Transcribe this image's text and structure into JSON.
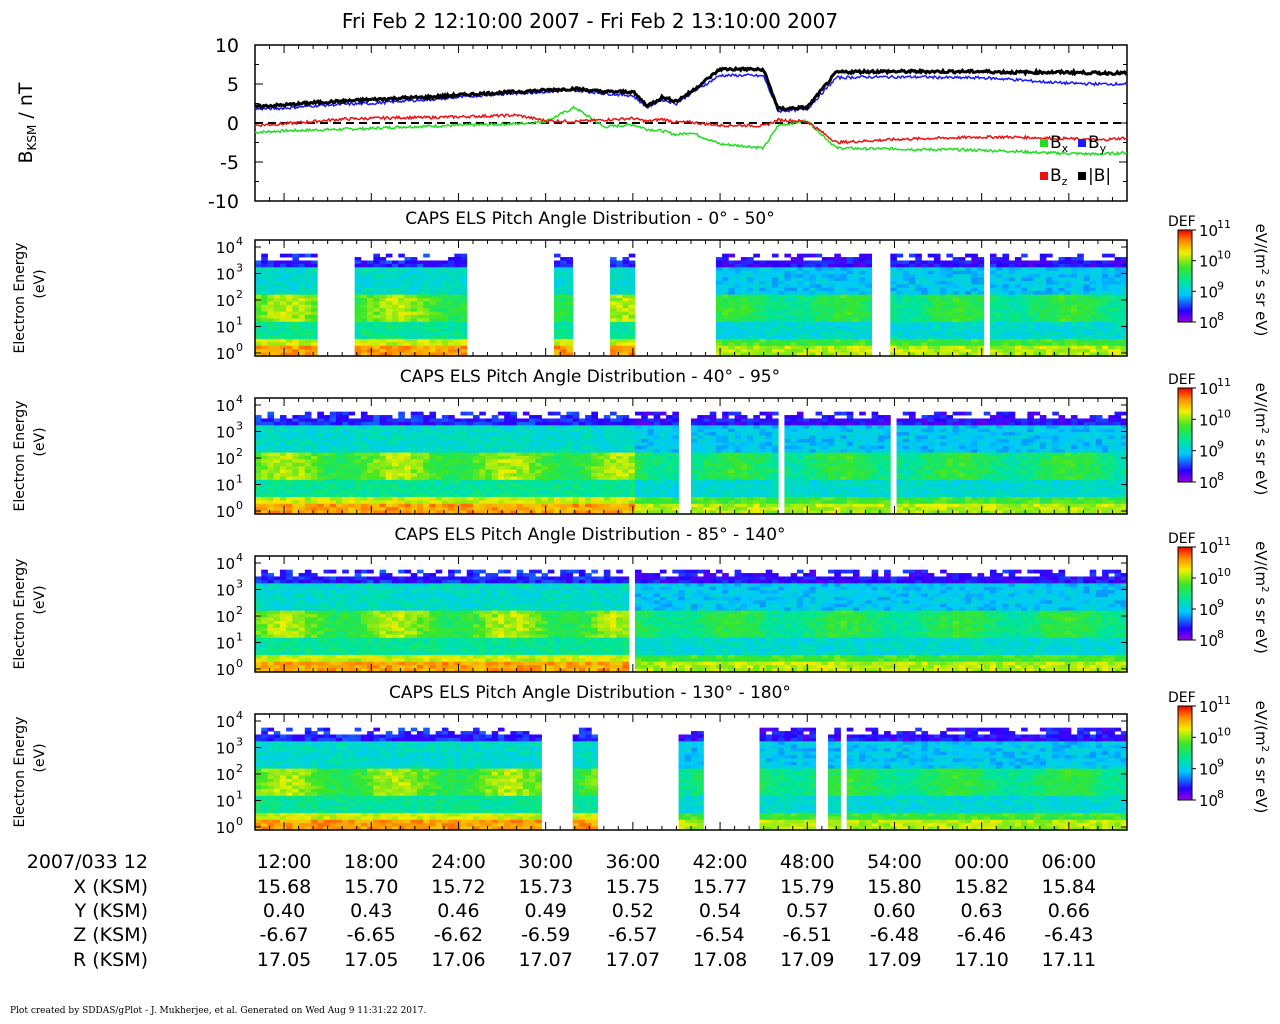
{
  "title": "Fri Feb 2 12:10:00 2007 - Fri Feb 2 13:10:00 2007",
  "mag_panel": {
    "ylabel_main": "B",
    "ylabel_sub": "KSM",
    "ylabel_unit": " / nT",
    "yticks": [
      "10",
      "5",
      "0",
      "-5",
      "-10"
    ],
    "legend": [
      {
        "label": "B",
        "sub": "x",
        "color": "#22dd22"
      },
      {
        "label": "B",
        "sub": "y",
        "color": "#1a1aff"
      },
      {
        "label": "B",
        "sub": "z",
        "color": "#ee1111"
      },
      {
        "label": "|B|",
        "sub": "",
        "color": "#000000"
      }
    ]
  },
  "spectro_panels": [
    {
      "title": "CAPS ELS Pitch Angle Distribution - 0° - 50°"
    },
    {
      "title": "CAPS ELS Pitch Angle Distribution - 40° - 95°"
    },
    {
      "title": "CAPS ELS Pitch Angle Distribution - 85° - 140°"
    },
    {
      "title": "CAPS ELS Pitch Angle Distribution - 130° - 180°"
    }
  ],
  "spectro_ylabel_1": "Electron Energy",
  "spectro_ylabel_2": "(eV)",
  "spectro_yticks": [
    "10",
    "10",
    "10",
    "10",
    "10"
  ],
  "spectro_yexp": [
    "4",
    "3",
    "2",
    "1",
    "0"
  ],
  "colorbar": {
    "title": "DEF",
    "ticks": [
      "10",
      "10",
      "10",
      "10"
    ],
    "exps": [
      "11",
      "10",
      "9",
      "8"
    ],
    "unit_a": "eV/(m",
    "unit_sup": "2",
    "unit_b": " s sr eV)"
  },
  "x_axis": {
    "row_labels": [
      "2007/033 12",
      "X (KSM)",
      "Y (KSM)",
      "Z (KSM)",
      "R (KSM)"
    ],
    "times": [
      "12:00",
      "18:00",
      "24:00",
      "30:00",
      "36:00",
      "42:00",
      "48:00",
      "54:00",
      "00:00",
      "06:00"
    ],
    "x": [
      "15.68",
      "15.70",
      "15.72",
      "15.73",
      "15.75",
      "15.77",
      "15.79",
      "15.80",
      "15.82",
      "15.84"
    ],
    "y": [
      "0.40",
      "0.43",
      "0.46",
      "0.49",
      "0.52",
      "0.54",
      "0.57",
      "0.60",
      "0.63",
      "0.66"
    ],
    "z": [
      "-6.67",
      "-6.65",
      "-6.62",
      "-6.59",
      "-6.57",
      "-6.54",
      "-6.51",
      "-6.48",
      "-6.46",
      "-6.43"
    ],
    "r": [
      "17.05",
      "17.05",
      "17.06",
      "17.07",
      "17.07",
      "17.08",
      "17.09",
      "17.09",
      "17.10",
      "17.11"
    ]
  },
  "chart_data": {
    "type": "line",
    "title": "Fri Feb 2 12:10:00 2007 - Fri Feb 2 13:10:00 2007",
    "ylabel": "BKSM / nT",
    "ylim": [
      -10,
      10
    ],
    "x_minutes": [
      0,
      2,
      4,
      6,
      8,
      10,
      12,
      14,
      16,
      18,
      20,
      22,
      24,
      26,
      27,
      28,
      29,
      30,
      32,
      34,
      35,
      36,
      38,
      40,
      42,
      44,
      46,
      48,
      50,
      52,
      54,
      56,
      58,
      60
    ],
    "series": [
      {
        "name": "Bx",
        "values": [
          -1.2,
          -1.0,
          -0.9,
          -0.8,
          -0.7,
          -0.5,
          -0.4,
          -0.3,
          -0.2,
          -0.1,
          0.2,
          2.0,
          -0.5,
          -0.2,
          -0.8,
          -1.0,
          -1.5,
          -1.2,
          -2.7,
          -3.0,
          -3.2,
          -0.3,
          0.3,
          -3.2,
          -3.3,
          -3.3,
          -3.4,
          -3.4,
          -3.5,
          -3.6,
          -3.8,
          -3.9,
          -4.0,
          -3.8
        ]
      },
      {
        "name": "By",
        "values": [
          1.8,
          1.9,
          2.2,
          2.4,
          2.5,
          2.8,
          3.0,
          3.3,
          3.6,
          3.8,
          4.0,
          4.2,
          3.8,
          3.5,
          2.0,
          3.0,
          2.5,
          3.8,
          6.1,
          6.1,
          6.0,
          1.5,
          1.8,
          5.8,
          5.9,
          5.9,
          5.9,
          5.8,
          5.8,
          5.6,
          5.3,
          5.1,
          5.0,
          5.0
        ]
      },
      {
        "name": "Bz",
        "values": [
          -0.3,
          -0.1,
          0.2,
          0.5,
          0.6,
          0.7,
          0.7,
          0.8,
          0.9,
          1.0,
          0.3,
          0.2,
          0.4,
          0.6,
          0.2,
          0.5,
          0.1,
          0.1,
          -0.3,
          -0.3,
          -0.4,
          0.4,
          0.2,
          -2.5,
          -2.3,
          -2.1,
          -2.0,
          -1.9,
          -1.8,
          -1.8,
          -1.9,
          -2.0,
          -2.2,
          -1.9
        ]
      },
      {
        "name": "|B|",
        "values": [
          2.1,
          2.3,
          2.6,
          2.8,
          3.0,
          3.2,
          3.3,
          3.6,
          3.8,
          4.0,
          4.2,
          4.4,
          4.0,
          4.0,
          2.2,
          3.3,
          2.8,
          4.0,
          6.9,
          6.9,
          6.8,
          1.8,
          2.0,
          6.5,
          6.6,
          6.6,
          6.6,
          6.6,
          6.6,
          6.5,
          6.5,
          6.5,
          6.4,
          6.4
        ]
      }
    ],
    "xticks": [
      "12:00",
      "18:00",
      "24:00",
      "30:00",
      "36:00",
      "42:00",
      "48:00",
      "54:00",
      "00:00",
      "06:00"
    ]
  }
}
